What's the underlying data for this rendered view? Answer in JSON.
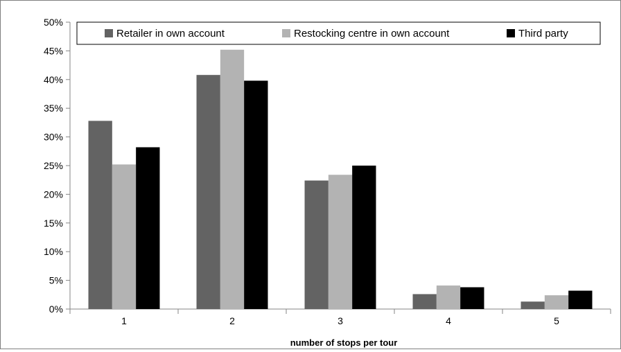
{
  "chart_data": {
    "type": "bar",
    "title": "",
    "xlabel": "number of stops per tour",
    "ylabel": "",
    "categories": [
      "1",
      "2",
      "3",
      "4",
      "5"
    ],
    "ylim": [
      0,
      0.5
    ],
    "yticks": [
      0,
      0.05,
      0.1,
      0.15,
      0.2,
      0.25,
      0.3,
      0.35,
      0.4,
      0.45,
      0.5
    ],
    "ytick_labels": [
      "0%",
      "5%",
      "10%",
      "15%",
      "20%",
      "25%",
      "30%",
      "35%",
      "40%",
      "45%",
      "50%"
    ],
    "grid": false,
    "legend_position": "top",
    "series": [
      {
        "name": "Retailer in own account",
        "color": "#636363",
        "values": [
          0.328,
          0.408,
          0.224,
          0.026,
          0.013
        ]
      },
      {
        "name": "Restocking centre in own account",
        "color": "#b3b3b3",
        "values": [
          0.252,
          0.452,
          0.234,
          0.041,
          0.024
        ]
      },
      {
        "name": "Third party",
        "color": "#000000",
        "values": [
          0.282,
          0.398,
          0.25,
          0.038,
          0.032
        ]
      }
    ]
  }
}
